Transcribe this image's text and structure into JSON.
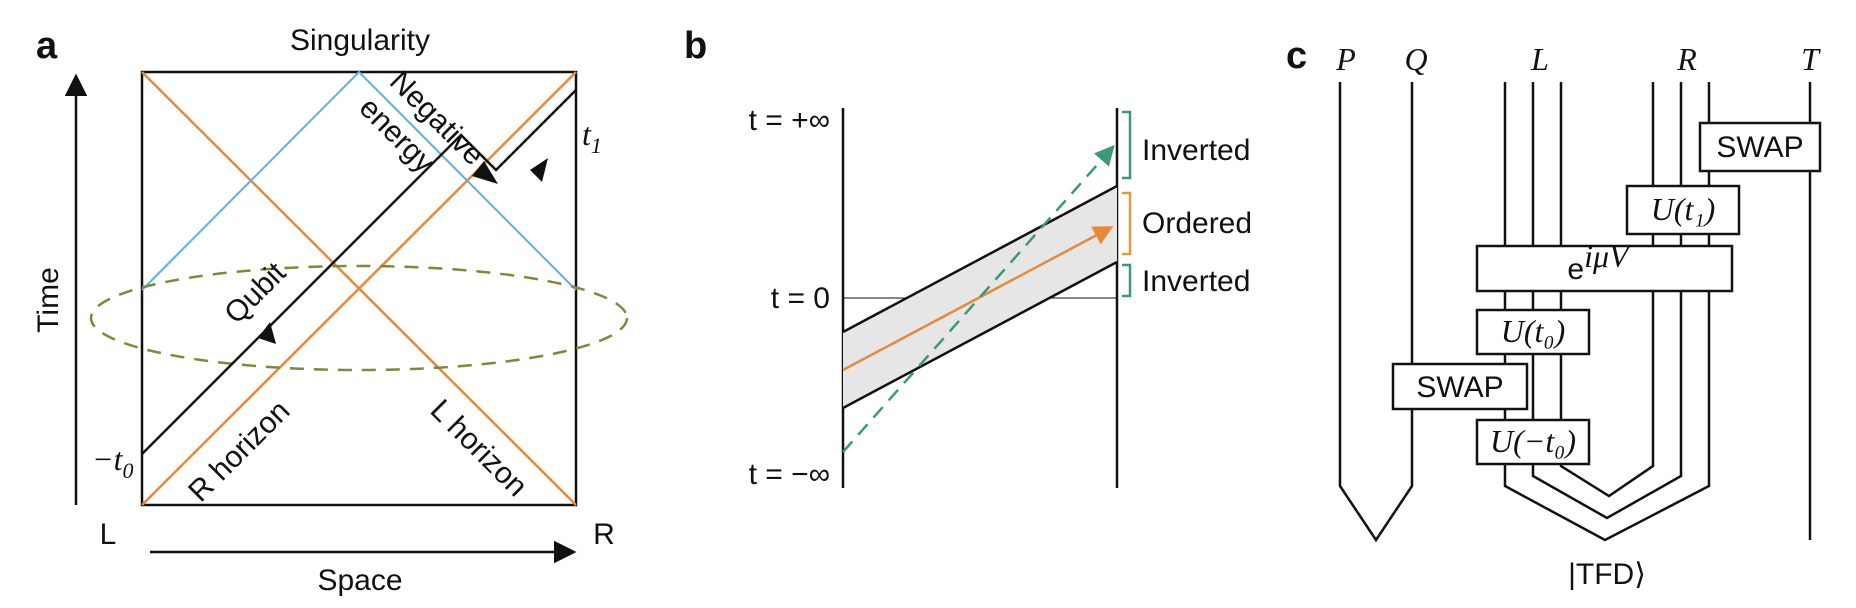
{
  "panel_a": {
    "label": "a",
    "top_label": "Singularity",
    "time_label": "Time",
    "space_label": "Space",
    "left_corner": "L",
    "right_corner": "R",
    "negative_energy_line1": "Negative",
    "negative_energy_line2": "energy",
    "qubit_label": "Qubit",
    "r_horizon": "R horizon",
    "l_horizon": "L horizon",
    "t1_main": "t",
    "t1_sub": "1",
    "mt0_main": "−t",
    "mt0_sub": "0"
  },
  "panel_b": {
    "label": "b",
    "t_plus_inf": "t = +∞",
    "t_zero": "t = 0",
    "t_minus_inf": "t = −∞",
    "inverted_top": "Inverted",
    "ordered": "Ordered",
    "inverted_bottom": "Inverted"
  },
  "panel_c": {
    "label": "c",
    "wires": [
      "P",
      "Q",
      "L",
      "R",
      "T"
    ],
    "swap_top": "SWAP",
    "u_t1": "U(t₁)",
    "e_imuv": "e",
    "e_sup": "iμV",
    "u_t0": "U(t₀)",
    "swap_bottom": "SWAP",
    "u_mt0": "U(−t₀)",
    "tfd": "|TFD⟩"
  },
  "colors": {
    "orange": "#e8893a",
    "blue": "#5ab4e0",
    "green": "#3a9a78",
    "olive": "#7d8a3a",
    "ordered_bracket": "#e39a3e"
  }
}
